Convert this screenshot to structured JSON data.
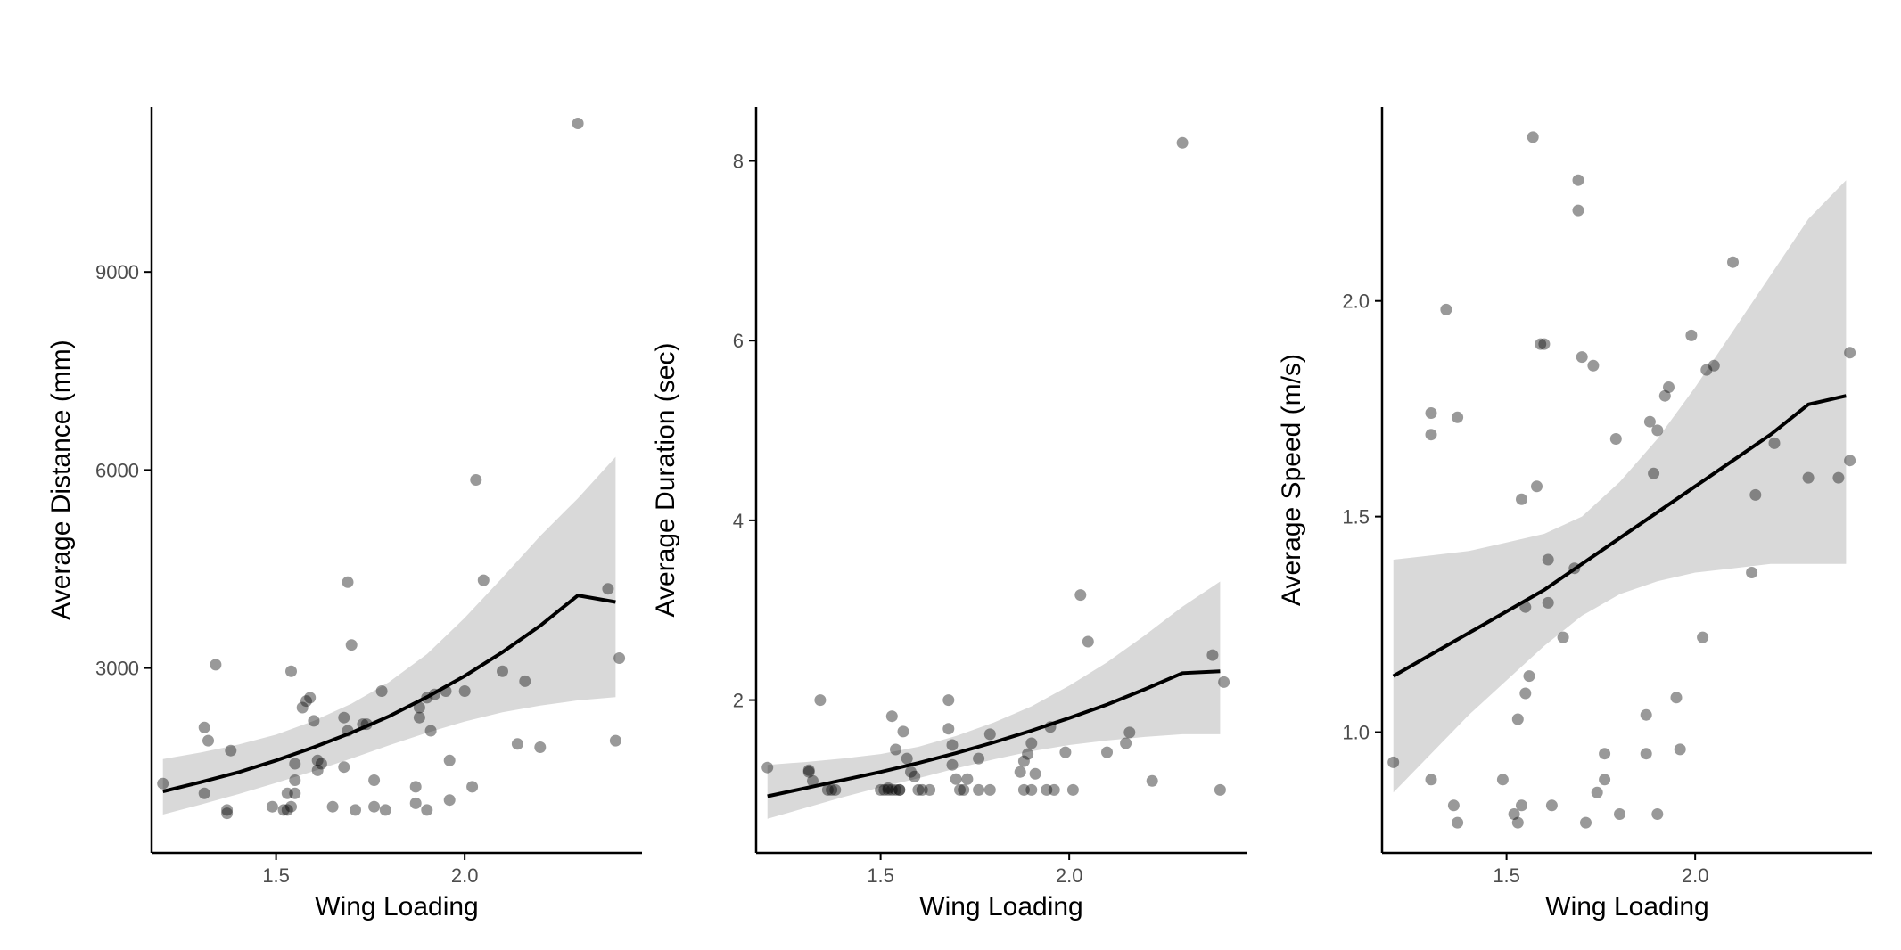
{
  "chart_data": [
    {
      "type": "scatter",
      "xlabel": "Wing Loading",
      "ylabel": "Average Distance (mm)",
      "xlim": [
        1.17,
        2.47
      ],
      "ylim": [
        200,
        11500
      ],
      "xticks": [
        1.5,
        2.0
      ],
      "xtick_labels": [
        "1.5",
        "2.0"
      ],
      "yticks": [
        3000,
        6000,
        9000
      ],
      "ytick_labels": [
        "3000",
        "6000",
        "9000"
      ],
      "grid": false,
      "colors": {
        "points": "#000000",
        "fit": "#000000",
        "band": "#d9d9d9"
      },
      "fit": {
        "x": [
          1.2,
          1.3,
          1.4,
          1.5,
          1.6,
          1.7,
          1.8,
          1.9,
          2.0,
          2.1,
          2.2,
          2.3,
          2.4
        ],
        "y": [
          1130,
          1270,
          1420,
          1600,
          1800,
          2020,
          2270,
          2560,
          2880,
          3240,
          3640,
          4100,
          4000
        ]
      },
      "band": {
        "x": [
          1.2,
          1.3,
          1.4,
          1.5,
          1.6,
          1.7,
          1.8,
          1.9,
          2.0,
          2.1,
          2.2,
          2.3,
          2.4
        ],
        "lower": [
          780,
          930,
          1090,
          1260,
          1440,
          1630,
          1830,
          2020,
          2190,
          2330,
          2430,
          2510,
          2560
        ],
        "upper": [
          1620,
          1720,
          1840,
          1990,
          2200,
          2460,
          2790,
          3210,
          3760,
          4370,
          5000,
          5570,
          6200
        ]
      },
      "points": {
        "x": [
          1.2,
          1.31,
          1.31,
          1.32,
          1.34,
          1.37,
          1.37,
          1.38,
          1.49,
          1.52,
          1.53,
          1.53,
          1.54,
          1.54,
          1.55,
          1.55,
          1.55,
          1.57,
          1.58,
          1.59,
          1.6,
          1.61,
          1.61,
          1.62,
          1.65,
          1.68,
          1.68,
          1.69,
          1.69,
          1.7,
          1.71,
          1.73,
          1.74,
          1.76,
          1.76,
          1.78,
          1.79,
          1.87,
          1.87,
          1.88,
          1.88,
          1.9,
          1.9,
          1.91,
          1.92,
          1.95,
          1.96,
          1.96,
          2.0,
          2.02,
          2.03,
          2.05,
          2.1,
          2.14,
          2.16,
          2.2,
          2.3,
          2.38,
          2.4,
          2.41
        ],
        "y": [
          1250,
          1100,
          2100,
          1900,
          3050,
          800,
          850,
          1750,
          900,
          850,
          1100,
          850,
          2950,
          900,
          1100,
          1300,
          1550,
          2400,
          2500,
          2550,
          2200,
          1600,
          1450,
          1550,
          900,
          2250,
          1500,
          4300,
          2050,
          3350,
          850,
          2150,
          2150,
          1300,
          900,
          2650,
          850,
          950,
          1200,
          2250,
          2400,
          850,
          2550,
          2050,
          2600,
          2650,
          1600,
          1000,
          2650,
          1200,
          5850,
          4330,
          2950,
          1850,
          2800,
          1800,
          11250,
          4200,
          1900,
          3150
        ]
      }
    },
    {
      "type": "scatter",
      "xlabel": "Wing Loading",
      "ylabel": "Average Duration (sec)",
      "xlim": [
        1.17,
        2.47
      ],
      "ylim": [
        0.3,
        8.6
      ],
      "xticks": [
        1.5,
        2.0
      ],
      "xtick_labels": [
        "1.5",
        "2.0"
      ],
      "yticks": [
        2,
        4,
        6,
        8
      ],
      "ytick_labels": [
        "2",
        "4",
        "6",
        "8"
      ],
      "grid": false,
      "colors": {
        "points": "#000000",
        "fit": "#000000",
        "band": "#d9d9d9"
      },
      "fit": {
        "x": [
          1.2,
          1.3,
          1.4,
          1.5,
          1.6,
          1.7,
          1.8,
          1.9,
          2.0,
          2.1,
          2.2,
          2.3,
          2.4
        ],
        "y": [
          0.93,
          1.02,
          1.11,
          1.2,
          1.3,
          1.41,
          1.53,
          1.66,
          1.8,
          1.95,
          2.12,
          2.3,
          2.32
        ]
      },
      "band": {
        "x": [
          1.2,
          1.3,
          1.4,
          1.5,
          1.6,
          1.7,
          1.8,
          1.9,
          2.0,
          2.1,
          2.2,
          2.3,
          2.4
        ],
        "lower": [
          0.68,
          0.8,
          0.92,
          1.03,
          1.13,
          1.24,
          1.34,
          1.43,
          1.5,
          1.55,
          1.59,
          1.62,
          1.62
        ],
        "upper": [
          1.28,
          1.31,
          1.35,
          1.4,
          1.48,
          1.6,
          1.75,
          1.93,
          2.16,
          2.42,
          2.72,
          3.04,
          3.32
        ]
      },
      "points": {
        "x": [
          1.2,
          1.31,
          1.31,
          1.32,
          1.34,
          1.36,
          1.37,
          1.38,
          1.5,
          1.51,
          1.52,
          1.52,
          1.53,
          1.53,
          1.54,
          1.54,
          1.55,
          1.55,
          1.56,
          1.57,
          1.58,
          1.59,
          1.6,
          1.61,
          1.63,
          1.68,
          1.68,
          1.69,
          1.69,
          1.7,
          1.71,
          1.72,
          1.73,
          1.76,
          1.76,
          1.79,
          1.79,
          1.87,
          1.88,
          1.88,
          1.89,
          1.9,
          1.9,
          1.91,
          1.94,
          1.95,
          1.96,
          1.99,
          2.01,
          2.03,
          2.05,
          2.1,
          2.15,
          2.16,
          2.22,
          2.3,
          2.38,
          2.4,
          2.41
        ],
        "y": [
          1.25,
          1.2,
          1.22,
          1.1,
          2.0,
          1.0,
          1.0,
          1.0,
          1.0,
          1.0,
          1.0,
          1.02,
          1.82,
          1.0,
          1.0,
          1.45,
          1.0,
          1.0,
          1.65,
          1.35,
          1.2,
          1.15,
          1.0,
          1.0,
          1.0,
          2.0,
          1.68,
          1.5,
          1.28,
          1.12,
          1.0,
          1.0,
          1.12,
          1.0,
          1.35,
          1.0,
          1.62,
          1.2,
          1.0,
          1.32,
          1.4,
          1.0,
          1.52,
          1.18,
          1.0,
          1.7,
          1.0,
          1.42,
          1.0,
          3.17,
          2.65,
          1.42,
          1.52,
          1.64,
          1.1,
          8.2,
          2.5,
          1.0,
          2.2
        ]
      }
    },
    {
      "type": "scatter",
      "xlabel": "Wing Loading",
      "ylabel": "Average Speed (m/s)",
      "xlim": [
        1.17,
        2.47
      ],
      "ylim": [
        0.72,
        2.45
      ],
      "xticks": [
        1.5,
        2.0
      ],
      "xtick_labels": [
        "1.5",
        "2.0"
      ],
      "yticks": [
        1.0,
        1.5,
        2.0
      ],
      "ytick_labels": [
        "1.0",
        "1.5",
        "2.0"
      ],
      "grid": false,
      "colors": {
        "points": "#000000",
        "fit": "#000000",
        "band": "#d9d9d9"
      },
      "fit": {
        "x": [
          1.2,
          1.3,
          1.4,
          1.5,
          1.6,
          1.7,
          1.8,
          1.9,
          2.0,
          2.1,
          2.2,
          2.3,
          2.4
        ],
        "y": [
          1.13,
          1.18,
          1.23,
          1.28,
          1.33,
          1.39,
          1.45,
          1.51,
          1.57,
          1.63,
          1.69,
          1.76,
          1.78
        ]
      },
      "band": {
        "x": [
          1.2,
          1.3,
          1.4,
          1.5,
          1.6,
          1.7,
          1.8,
          1.9,
          2.0,
          2.1,
          2.2,
          2.3,
          2.4
        ],
        "lower": [
          0.86,
          0.95,
          1.04,
          1.12,
          1.2,
          1.27,
          1.32,
          1.35,
          1.37,
          1.38,
          1.39,
          1.39,
          1.39
        ],
        "upper": [
          1.4,
          1.41,
          1.42,
          1.44,
          1.46,
          1.5,
          1.58,
          1.68,
          1.8,
          1.93,
          2.06,
          2.19,
          2.28
        ]
      },
      "points": {
        "x": [
          1.2,
          1.3,
          1.3,
          1.3,
          1.34,
          1.36,
          1.37,
          1.37,
          1.49,
          1.52,
          1.53,
          1.53,
          1.54,
          1.54,
          1.55,
          1.55,
          1.56,
          1.57,
          1.58,
          1.59,
          1.6,
          1.61,
          1.61,
          1.62,
          1.65,
          1.68,
          1.69,
          1.69,
          1.7,
          1.71,
          1.73,
          1.74,
          1.76,
          1.76,
          1.79,
          1.8,
          1.87,
          1.87,
          1.88,
          1.89,
          1.9,
          1.9,
          1.92,
          1.93,
          1.95,
          1.96,
          1.99,
          2.02,
          2.03,
          2.05,
          2.1,
          2.15,
          2.16,
          2.21,
          2.3,
          2.38,
          2.41,
          2.41
        ],
        "y": [
          0.93,
          1.74,
          1.69,
          0.89,
          1.98,
          0.83,
          0.79,
          1.73,
          0.89,
          0.81,
          1.03,
          0.79,
          1.54,
          0.83,
          1.29,
          1.09,
          1.13,
          2.38,
          1.57,
          1.9,
          1.9,
          1.4,
          1.3,
          0.83,
          1.22,
          1.38,
          2.21,
          2.28,
          1.87,
          0.79,
          1.85,
          0.86,
          0.89,
          0.95,
          1.68,
          0.81,
          1.04,
          0.95,
          1.72,
          1.6,
          1.7,
          0.81,
          1.78,
          1.8,
          1.08,
          0.96,
          1.92,
          1.22,
          1.84,
          1.85,
          2.09,
          1.37,
          1.55,
          1.67,
          1.59,
          1.59,
          1.88,
          1.63
        ]
      }
    }
  ]
}
